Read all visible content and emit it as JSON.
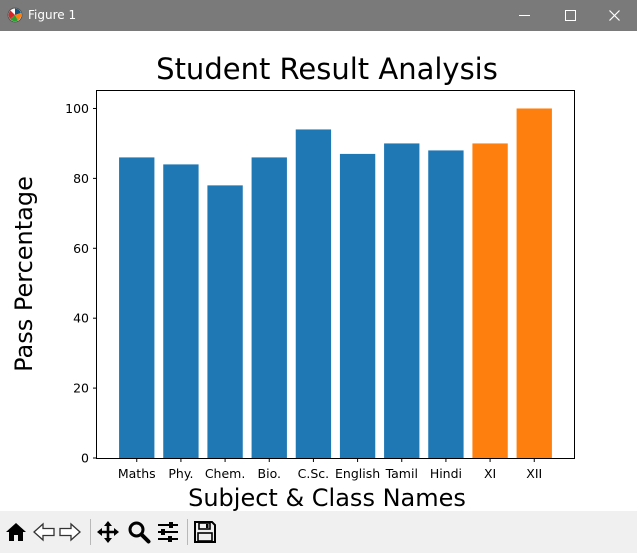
{
  "window": {
    "title": "Figure 1",
    "controls": [
      "minimize-icon",
      "maximize-icon",
      "close-icon"
    ]
  },
  "toolbar": {
    "tools": [
      "home-icon",
      "back-arrow-icon",
      "forward-arrow-icon",
      "pan-icon",
      "zoom-icon",
      "configure-subplots-icon",
      "save-icon"
    ]
  },
  "colors": {
    "subject_bar": "#1f77b4",
    "class_bar": "#ff7f0e"
  },
  "chart_data": {
    "type": "bar",
    "title": "Student Result Analysis",
    "xlabel": "Subject & Class Names",
    "ylabel": "Pass Percentage",
    "ylim": [
      0,
      105
    ],
    "yticks": [
      0,
      20,
      40,
      60,
      80,
      100
    ],
    "grid": false,
    "categories": [
      "Maths",
      "Phy.",
      "Chem.",
      "Bio.",
      "C.Sc.",
      "English",
      "Tamil",
      "Hindi",
      "XI",
      "XII"
    ],
    "values": [
      86,
      84,
      78,
      86,
      94,
      87,
      90,
      88,
      90,
      100
    ],
    "bar_colors": [
      "#1f77b4",
      "#1f77b4",
      "#1f77b4",
      "#1f77b4",
      "#1f77b4",
      "#1f77b4",
      "#1f77b4",
      "#1f77b4",
      "#ff7f0e",
      "#ff7f0e"
    ]
  }
}
